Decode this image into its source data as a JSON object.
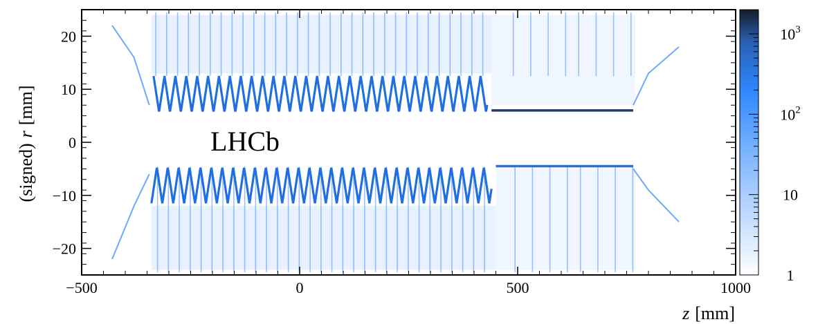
{
  "chart_data": {
    "type": "heatmap",
    "title": "",
    "watermark": "LHCb",
    "xlabel_var": "z",
    "xlabel_unit": "[mm]",
    "ylabel_prefix": "(signed)",
    "ylabel_var": "r",
    "ylabel_unit": "[mm]",
    "xlim": [
      -500,
      1000
    ],
    "ylim": [
      -25,
      25
    ],
    "x_ticks": [
      -500,
      0,
      500,
      1000
    ],
    "x_tick_labels": [
      "−500",
      "0",
      "500",
      "1000"
    ],
    "y_ticks": [
      -20,
      -10,
      0,
      10,
      20
    ],
    "y_tick_labels": [
      "−20",
      "−10",
      "0",
      "10",
      "20"
    ],
    "colorbar": {
      "scale": "log",
      "range": [
        1,
        2000
      ],
      "tick_labels": [
        {
          "value": 1,
          "base": "1",
          "exp": ""
        },
        {
          "value": 10,
          "base": "10",
          "exp": ""
        },
        {
          "value": 100,
          "base": "10",
          "exp": "2"
        },
        {
          "value": 1000,
          "base": "10",
          "exp": "3"
        }
      ],
      "color_low": "#ffffff",
      "color_mid": "#3a8cff",
      "color_high": "#151c2a"
    },
    "upper_band": {
      "peak_r": 12.5,
      "trough_r": 5.7,
      "ripple_z_start": -335,
      "ripple_z_end": 430,
      "flat_z_start": 440,
      "flat_z_end": 765,
      "flat_r": 6.0
    },
    "lower_band": {
      "peak_r": -4.7,
      "trough_r": -11.5,
      "ripple_z_start": -340,
      "ripple_z_end": 440,
      "flat_z_start": 450,
      "flat_z_end": 765,
      "flat_r": -4.5
    },
    "grid": false
  }
}
